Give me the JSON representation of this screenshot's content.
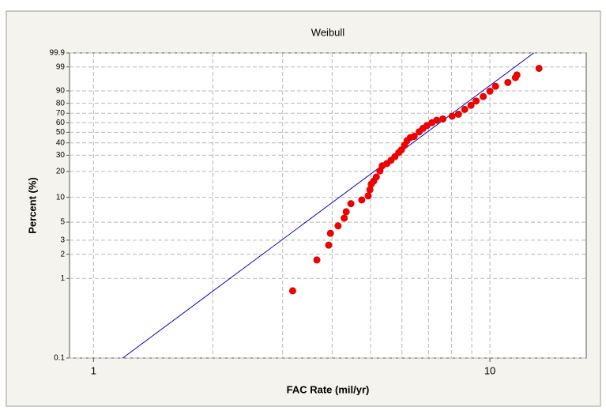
{
  "chart_data": {
    "type": "scatter",
    "title": "Weibull",
    "x_label": "FAC Rate (mil/yr)",
    "y_label": "Percent (%)",
    "xscale": "log",
    "yscale": "weibull",
    "xlim": [
      0.87,
      17.5
    ],
    "xticks": [
      1,
      10
    ],
    "xminor": [
      2,
      3,
      4,
      5,
      6,
      7,
      8,
      9
    ],
    "ylim": [
      0.1,
      99.9
    ],
    "yticks": [
      0.1,
      1,
      2,
      3,
      5,
      10,
      20,
      30,
      40,
      50,
      60,
      70,
      80,
      90,
      99,
      99.9
    ],
    "grid": true,
    "points": {
      "color": "#ee0000",
      "x": [
        3.18,
        3.66,
        3.92,
        3.96,
        4.14,
        4.29,
        4.34,
        4.46,
        4.75,
        4.93,
        4.98,
        5.02,
        5.09,
        5.17,
        5.28,
        5.35,
        5.5,
        5.63,
        5.76,
        5.89,
        5.98,
        6.09,
        6.18,
        6.3,
        6.44,
        6.63,
        6.78,
        6.94,
        7.14,
        7.34,
        7.61,
        8.03,
        8.33,
        8.64,
        8.96,
        9.23,
        9.62,
        10.0,
        10.33,
        11.1,
        11.6,
        11.7,
        13.3
      ],
      "y": [
        0.7,
        1.7,
        2.6,
        3.65,
        4.5,
        5.6,
        6.7,
        8.4,
        9.3,
        10.4,
        12.3,
        14.3,
        15.5,
        17.3,
        20.3,
        23.1,
        24.5,
        26.5,
        29,
        32,
        34,
        37.9,
        42,
        44.8,
        46,
        50.5,
        54,
        57,
        60,
        62.6,
        64,
        66.9,
        69,
        74,
        78,
        82,
        85.8,
        89.8,
        92.8,
        94.7,
        96.6,
        97.4,
        98.8
      ]
    },
    "fit_line": {
      "color": "#0000cc",
      "x": [
        1.185,
        12.9
      ],
      "y": [
        0.1,
        99.9
      ]
    }
  }
}
